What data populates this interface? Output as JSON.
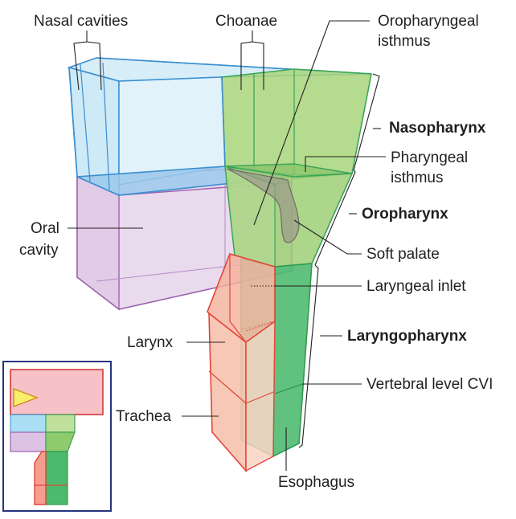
{
  "labels": {
    "nasal_cavities": "Nasal cavities",
    "choanae": "Choanae",
    "oropharyngeal_isthmus_1": "Oropharyngeal",
    "oropharyngeal_isthmus_2": "isthmus",
    "nasopharynx": "Nasopharynx",
    "pharyngeal_isthmus_1": "Pharyngeal",
    "pharyngeal_isthmus_2": "isthmus",
    "oral_cavity_1": "Oral",
    "oral_cavity_2": "cavity",
    "oropharynx": "Oropharynx",
    "soft_palate": "Soft palate",
    "laryngeal_inlet": "Laryngeal inlet",
    "larynx": "Larynx",
    "laryngopharynx": "Laryngopharynx",
    "vertebral_level": "Vertebral level CVI",
    "trachea": "Trachea",
    "esophagus": "Esophagus"
  },
  "colors": {
    "nasal_fill": "#cdeaf7",
    "nasal_stroke": "#3b8ed0",
    "oral_fill": "#e8d6ec",
    "oral_stroke": "#9a63b0",
    "pharynx_fill": "#a9d67a",
    "pharynx_stroke": "#3aa55a",
    "laryngo_fill": "#4cba6d",
    "larynx_fill": "#f5b7a2",
    "larynx_stroke": "#e2453a",
    "inset_border": "#27347d",
    "inset_head_fill": "#f6c1c7",
    "inset_arrow_fill": "#f8ee6a"
  }
}
